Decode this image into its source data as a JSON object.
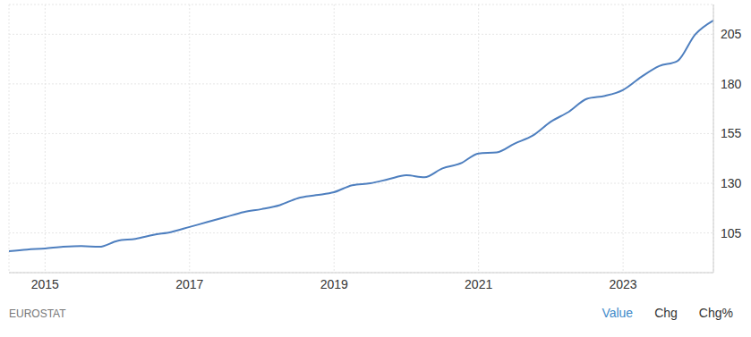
{
  "chart_data": {
    "type": "line",
    "categories": [
      null,
      null,
      "2015",
      null,
      null,
      null,
      null,
      null,
      null,
      null,
      "2017",
      null,
      null,
      null,
      null,
      null,
      null,
      null,
      "2019",
      null,
      null,
      null,
      null,
      null,
      null,
      null,
      "2021",
      null,
      null,
      null,
      null,
      null,
      null,
      null,
      "2023",
      null,
      null,
      null,
      null,
      null
    ],
    "values": [
      95.8,
      96.6,
      97.2,
      98.0,
      98.4,
      98.0,
      101.0,
      102.0,
      104.0,
      105.5,
      108.0,
      110.5,
      113.0,
      115.5,
      117.0,
      119.0,
      122.5,
      124.0,
      125.5,
      129.0,
      130.0,
      132.0,
      134.0,
      133.0,
      137.5,
      140.0,
      145.0,
      145.5,
      150.0,
      154.0,
      161.0,
      166.0,
      172.5,
      174.0,
      177.0,
      183.5,
      189.0,
      191.5,
      205.0,
      212.0
    ],
    "color": "#4e7fbf",
    "ylim": [
      85,
      220
    ],
    "yticks": [
      105,
      130,
      155,
      180,
      205
    ],
    "grid": true,
    "source": "EUROSTAT",
    "controls": [
      "Value",
      "Chg",
      "Chg%"
    ]
  }
}
